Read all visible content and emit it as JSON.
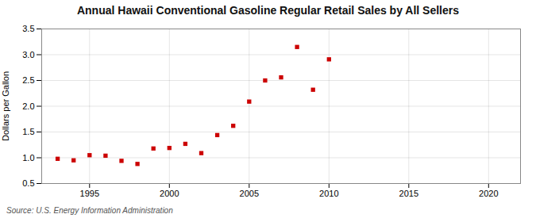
{
  "chart_data": {
    "type": "scatter",
    "title": "Annual Hawaii Conventional Gasoline Regular Retail Sales by All Sellers",
    "ylabel": "Dollars per Gallon",
    "annotations": [
      "Source: U.S. Energy Information Administration"
    ],
    "x": [
      1993,
      1994,
      1995,
      1996,
      1997,
      1998,
      1999,
      2000,
      2001,
      2002,
      2003,
      2004,
      2005,
      2006,
      2007,
      2008,
      2009,
      2010
    ],
    "values": [
      0.98,
      0.95,
      1.05,
      1.04,
      0.94,
      0.88,
      1.18,
      1.19,
      1.27,
      1.09,
      1.44,
      1.62,
      2.09,
      2.5,
      2.56,
      3.15,
      2.32,
      2.91
    ],
    "color": "#cc0000",
    "marker": "square",
    "xlim": [
      1992,
      2022
    ],
    "ylim": [
      0.5,
      3.5
    ],
    "xticks": [
      1995,
      2000,
      2005,
      2010,
      2015,
      2020
    ],
    "yticks": [
      0.5,
      {
        "value": 1.0,
        "label": "1.0"
      },
      1.5,
      {
        "value": 2.0,
        "label": "2.0"
      },
      2.5,
      {
        "value": 3.0,
        "label": "3.0"
      },
      3.5
    ],
    "grid": true
  }
}
